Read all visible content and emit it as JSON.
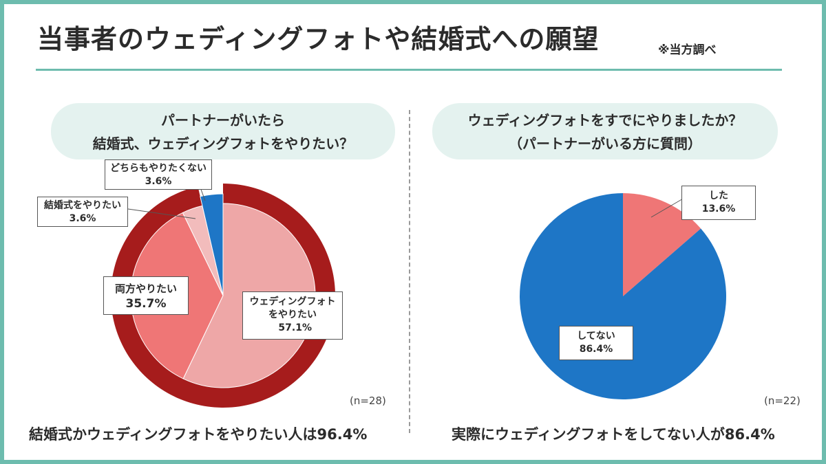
{
  "header": {
    "title": "当事者のウェディングフォトや結婚式への願望",
    "note": "※当方調べ"
  },
  "chart_data": [
    {
      "type": "pie",
      "title_lines": [
        "パートナーがいたら",
        "結婚式、ウェディングフォトをやりたい？"
      ],
      "slices": [
        {
          "label": "ウェディングフォトをやりたい",
          "label_lines": [
            "ウェディングフォト",
            "をやりたい"
          ],
          "value": 57.1,
          "value_text": "57.1%",
          "color": "#eea7a7"
        },
        {
          "label": "両方やりたい",
          "label_lines": [
            "両方やりたい"
          ],
          "value": 35.7,
          "value_text": "35.7%",
          "color": "#ef7676"
        },
        {
          "label": "結婚式をやりたい",
          "label_lines": [
            "結婚式をやりたい"
          ],
          "value": 3.6,
          "value_text": "3.6%",
          "color": "#f2bcbc"
        },
        {
          "label": "どちらもやりたくない",
          "label_lines": [
            "どちらもやりたくない"
          ],
          "value": 3.6,
          "value_text": "3.6%",
          "color": "#1e76c6"
        }
      ],
      "highlight_ring": {
        "covers_percent": 96.4,
        "color": "#a61c1c"
      },
      "sample": "(n=28)",
      "summary": "結婚式かウェディングフォトをやりたい人は96.4%"
    },
    {
      "type": "pie",
      "title_lines": [
        "ウェディングフォトをすでにやりましたか？",
        "（パートナーがいる方に質問）"
      ],
      "slices": [
        {
          "label": "した",
          "label_lines": [
            "した"
          ],
          "value": 13.6,
          "value_text": "13.6%",
          "color": "#ef7676"
        },
        {
          "label": "してない",
          "label_lines": [
            "してない"
          ],
          "value": 86.4,
          "value_text": "86.4%",
          "color": "#1e76c6"
        }
      ],
      "sample": "(n=22)",
      "summary": "実際にウェディングフォトをしてない人が86.4%"
    }
  ]
}
